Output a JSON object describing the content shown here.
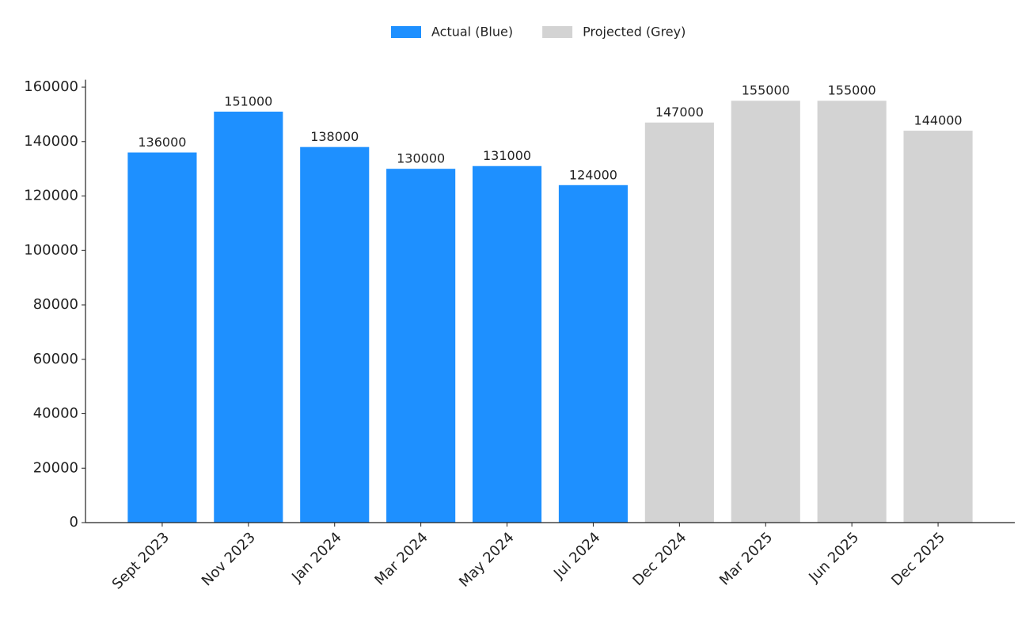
{
  "chart_data": {
    "type": "bar",
    "categories": [
      "Sept 2023",
      "Nov 2023",
      "Jan 2024",
      "Mar 2024",
      "May 2024",
      "Jul 2024",
      "Dec 2024",
      "Mar 2025",
      "Jun 2025",
      "Dec 2025"
    ],
    "series": [
      {
        "name": "Actual (Blue)",
        "color": "#1e90ff",
        "values": [
          136000,
          151000,
          138000,
          130000,
          131000,
          124000,
          null,
          null,
          null,
          null
        ]
      },
      {
        "name": "Projected (Grey)",
        "color": "#d3d3d3",
        "values": [
          null,
          null,
          null,
          null,
          null,
          null,
          147000,
          155000,
          155000,
          144000
        ]
      }
    ],
    "ylim": [
      0,
      162750
    ],
    "yticks": [
      0,
      20000,
      40000,
      60000,
      80000,
      100000,
      120000,
      140000,
      160000
    ],
    "grid": false,
    "legend": "top"
  }
}
